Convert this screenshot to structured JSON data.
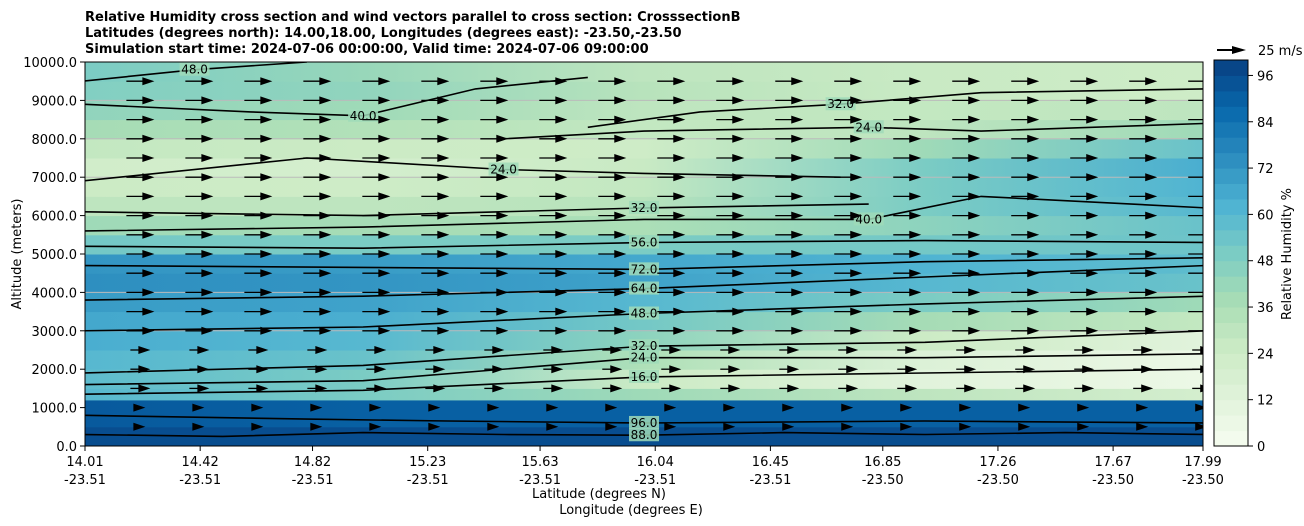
{
  "chart_data": {
    "type": "heatmap",
    "title_lines": [
      "Relative Humidity cross section and wind vectors parallel to cross section: CrosssectionB",
      "Latitudes (degrees north): 14.00,18.00, Longitudes (degrees east): -23.50,-23.50",
      "Simulation start time: 2024-07-06 00:00:00, Valid time: 2024-07-06 09:00:00"
    ],
    "xlabel": "Latitude (degrees N)",
    "xlabel2": "Longitude (degrees E)",
    "ylabel": "Altitude (meters)",
    "xlim": [
      14.01,
      17.99
    ],
    "ylim": [
      0,
      10000
    ],
    "x_ticks": [
      {
        "lat": "14.01",
        "lon": "-23.51"
      },
      {
        "lat": "14.42",
        "lon": "-23.51"
      },
      {
        "lat": "14.82",
        "lon": "-23.51"
      },
      {
        "lat": "15.23",
        "lon": "-23.51"
      },
      {
        "lat": "15.63",
        "lon": "-23.51"
      },
      {
        "lat": "16.04",
        "lon": "-23.51"
      },
      {
        "lat": "16.45",
        "lon": "-23.51"
      },
      {
        "lat": "16.85",
        "lon": "-23.50"
      },
      {
        "lat": "17.26",
        "lon": "-23.50"
      },
      {
        "lat": "17.67",
        "lon": "-23.50"
      },
      {
        "lat": "17.99",
        "lon": "-23.50"
      }
    ],
    "y_ticks": [
      "0.0",
      "1000.0",
      "2000.0",
      "3000.0",
      "4000.0",
      "5000.0",
      "6000.0",
      "7000.0",
      "8000.0",
      "9000.0",
      "10000.0"
    ],
    "colorbar": {
      "label": "Relative Humidity %",
      "ticks": [
        "0",
        "12",
        "24",
        "36",
        "48",
        "60",
        "72",
        "84",
        "96"
      ],
      "range": [
        0,
        100
      ],
      "step": 4,
      "colormap": [
        "#f7fcf0",
        "#e0f3db",
        "#ccebc5",
        "#a8ddb5",
        "#7bccc4",
        "#4eb3d3",
        "#2b8cbe",
        "#0868ac",
        "#084081"
      ]
    },
    "quiver_key": "25 m/s",
    "rh_lat_columns": [
      14.0,
      15.0,
      16.0,
      17.0,
      18.0
    ],
    "rh_profile": [
      {
        "z": [
          0,
          500
        ],
        "rh": [
          96,
          96,
          96,
          96,
          96
        ]
      },
      {
        "z": [
          500,
          1200
        ],
        "rh": [
          92,
          90,
          90,
          90,
          90
        ]
      },
      {
        "z": [
          1200,
          1500
        ],
        "rh": [
          60,
          50,
          40,
          30,
          20
        ]
      },
      {
        "z": [
          1500,
          2000
        ],
        "rh": [
          58,
          50,
          25,
          12,
          6
        ]
      },
      {
        "z": [
          2000,
          2500
        ],
        "rh": [
          60,
          55,
          35,
          15,
          6
        ]
      },
      {
        "z": [
          2500,
          3000
        ],
        "rh": [
          64,
          60,
          45,
          25,
          12
        ]
      },
      {
        "z": [
          3000,
          3500
        ],
        "rh": [
          66,
          64,
          52,
          38,
          28
        ]
      },
      {
        "z": [
          3500,
          4000
        ],
        "rh": [
          70,
          68,
          60,
          50,
          40
        ]
      },
      {
        "z": [
          4000,
          4500
        ],
        "rh": [
          74,
          72,
          68,
          60,
          55
        ]
      },
      {
        "z": [
          4500,
          5000
        ],
        "rh": [
          72,
          70,
          66,
          62,
          58
        ]
      },
      {
        "z": [
          5000,
          5500
        ],
        "rh": [
          52,
          50,
          50,
          52,
          54
        ]
      },
      {
        "z": [
          5500,
          6000
        ],
        "rh": [
          40,
          38,
          36,
          45,
          55
        ]
      },
      {
        "z": [
          6000,
          6500
        ],
        "rh": [
          30,
          30,
          32,
          50,
          60
        ]
      },
      {
        "z": [
          6500,
          7000
        ],
        "rh": [
          25,
          24,
          28,
          50,
          62
        ]
      },
      {
        "z": [
          7000,
          7500
        ],
        "rh": [
          22,
          20,
          26,
          50,
          64
        ]
      },
      {
        "z": [
          7500,
          8000
        ],
        "rh": [
          28,
          25,
          24,
          40,
          55
        ]
      },
      {
        "z": [
          8000,
          8500
        ],
        "rh": [
          38,
          34,
          28,
          30,
          40
        ]
      },
      {
        "z": [
          8500,
          9000
        ],
        "rh": [
          44,
          40,
          30,
          28,
          30
        ]
      },
      {
        "z": [
          9000,
          9500
        ],
        "rh": [
          48,
          44,
          32,
          26,
          24
        ]
      },
      {
        "z": [
          9500,
          10000
        ],
        "rh": [
          50,
          42,
          30,
          26,
          24
        ]
      }
    ],
    "contours": [
      {
        "level": "88.0",
        "pts": [
          [
            14.0,
            300
          ],
          [
            14.5,
            250
          ],
          [
            15.0,
            350
          ],
          [
            15.5,
            300
          ],
          [
            16.0,
            280
          ],
          [
            16.5,
            350
          ],
          [
            17.0,
            300
          ],
          [
            17.5,
            350
          ],
          [
            18.0,
            300
          ]
        ]
      },
      {
        "level": "96.0",
        "pts": [
          [
            14.0,
            800
          ],
          [
            14.8,
            700
          ],
          [
            15.3,
            650
          ],
          [
            16.0,
            600
          ],
          [
            17.0,
            650
          ],
          [
            18.0,
            600
          ]
        ]
      },
      {
        "level": "16.0",
        "pts": [
          [
            14.0,
            1350
          ],
          [
            15.0,
            1450
          ],
          [
            16.0,
            1800
          ],
          [
            17.0,
            1900
          ],
          [
            18.0,
            2000
          ]
        ]
      },
      {
        "level": "24.0",
        "pts": [
          [
            14.0,
            1600
          ],
          [
            15.0,
            1700
          ],
          [
            16.0,
            2300
          ],
          [
            17.0,
            2300
          ],
          [
            18.0,
            2400
          ]
        ]
      },
      {
        "level": "32.0",
        "pts": [
          [
            14.0,
            1900
          ],
          [
            15.0,
            2100
          ],
          [
            16.0,
            2600
          ],
          [
            17.0,
            2700
          ],
          [
            18.0,
            3000
          ]
        ]
      },
      {
        "level": "48.0",
        "pts": [
          [
            14.0,
            3000
          ],
          [
            15.0,
            3100
          ],
          [
            16.0,
            3450
          ],
          [
            17.0,
            3700
          ],
          [
            18.0,
            3900
          ]
        ]
      },
      {
        "level": "64.0",
        "pts": [
          [
            14.0,
            3800
          ],
          [
            15.0,
            3900
          ],
          [
            16.0,
            4100
          ],
          [
            17.0,
            4400
          ],
          [
            18.0,
            4700
          ]
        ]
      },
      {
        "level": "72.0",
        "pts": [
          [
            14.0,
            4700
          ],
          [
            15.0,
            4650
          ],
          [
            16.0,
            4600
          ],
          [
            17.0,
            4800
          ],
          [
            18.0,
            4900
          ]
        ]
      },
      {
        "level": "56.0",
        "pts": [
          [
            14.0,
            5200
          ],
          [
            15.0,
            5150
          ],
          [
            16.0,
            5300
          ],
          [
            17.0,
            5350
          ],
          [
            18.0,
            5300
          ]
        ]
      },
      {
        "level": "40.0",
        "pts": [
          [
            14.0,
            5600
          ],
          [
            15.0,
            5700
          ],
          [
            16.0,
            5900
          ],
          [
            16.8,
            5900
          ],
          [
            17.2,
            6500
          ],
          [
            18.0,
            6200
          ]
        ]
      },
      {
        "level": "32.0",
        "pts": [
          [
            14.0,
            6100
          ],
          [
            15.0,
            6000
          ],
          [
            16.0,
            6200
          ],
          [
            16.8,
            6300
          ]
        ]
      },
      {
        "level": "24.0",
        "pts": [
          [
            14.0,
            6900
          ],
          [
            14.8,
            7500
          ],
          [
            15.5,
            7200
          ],
          [
            16.0,
            7100
          ],
          [
            16.7,
            7000
          ]
        ]
      },
      {
        "level": "24.0",
        "pts": [
          [
            15.5,
            8000
          ],
          [
            16.0,
            8200
          ],
          [
            16.8,
            8300
          ],
          [
            17.2,
            8200
          ],
          [
            18.0,
            8400
          ]
        ]
      },
      {
        "level": "32.0",
        "pts": [
          [
            15.8,
            8300
          ],
          [
            16.2,
            8700
          ],
          [
            16.7,
            8900
          ],
          [
            17.2,
            9200
          ],
          [
            18.0,
            9300
          ]
        ]
      },
      {
        "level": "40.0",
        "pts": [
          [
            14.0,
            8900
          ],
          [
            14.6,
            8700
          ],
          [
            15.0,
            8600
          ],
          [
            15.4,
            9300
          ],
          [
            15.8,
            9600
          ]
        ]
      },
      {
        "level": "48.0",
        "pts": [
          [
            14.0,
            9500
          ],
          [
            14.4,
            9800
          ],
          [
            14.8,
            10000
          ]
        ]
      }
    ]
  }
}
